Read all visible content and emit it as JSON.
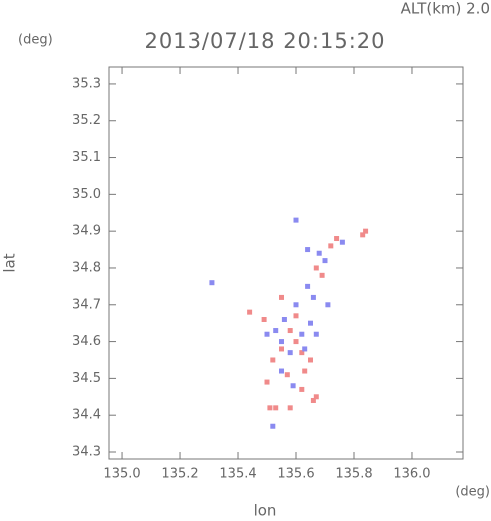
{
  "chart_data": {
    "type": "scatter",
    "title": "2013/07/18 20:15:20",
    "subtitle": "ALT(km) 2.0",
    "y_unit": "(deg)",
    "x_unit": "(deg)",
    "xlabel": "lon",
    "ylabel": "lat",
    "xlim": [
      134.955,
      136.176
    ],
    "ylim": [
      34.281,
      35.346
    ],
    "xticks": [
      {
        "value": 135,
        "label": "135.0"
      },
      135.2,
      135.4,
      135.6,
      135.8,
      {
        "value": 136,
        "label": "136.0"
      }
    ],
    "yticks": [
      34.3,
      34.4,
      34.5,
      34.6,
      34.7,
      34.8,
      34.9,
      {
        "value": 35,
        "label": "35.0"
      },
      35.1,
      35.2,
      35.3
    ],
    "series": [
      {
        "color": "#f08a8a",
        "x": [
          135.62,
          135.65,
          135.63,
          135.6,
          135.58,
          135.55,
          135.52,
          135.5,
          135.53,
          135.51,
          135.58,
          135.67,
          135.66,
          135.44,
          135.49,
          135.55,
          135.67,
          135.72,
          135.74,
          135.83,
          135.84,
          135.6,
          135.57,
          135.69,
          135.62
        ],
        "values": [
          34.57,
          34.55,
          34.52,
          34.6,
          34.63,
          34.58,
          34.55,
          34.49,
          34.42,
          34.42,
          34.42,
          34.45,
          34.44,
          34.68,
          34.66,
          34.72,
          34.8,
          34.86,
          34.88,
          34.89,
          34.9,
          34.67,
          34.51,
          34.78,
          34.47
        ]
      },
      {
        "color": "#8a8af0",
        "x": [
          135.6,
          135.55,
          135.58,
          135.62,
          135.65,
          135.53,
          135.5,
          135.56,
          135.6,
          135.64,
          135.68,
          135.7,
          135.66,
          135.71,
          135.31,
          135.52,
          135.59,
          135.63,
          135.55,
          135.76,
          135.67,
          135.64
        ],
        "values": [
          34.93,
          34.52,
          34.57,
          34.62,
          34.65,
          34.63,
          34.62,
          34.66,
          34.7,
          34.75,
          34.84,
          34.82,
          34.72,
          34.7,
          34.76,
          34.37,
          34.48,
          34.58,
          34.6,
          34.87,
          34.62,
          34.85
        ]
      }
    ]
  }
}
